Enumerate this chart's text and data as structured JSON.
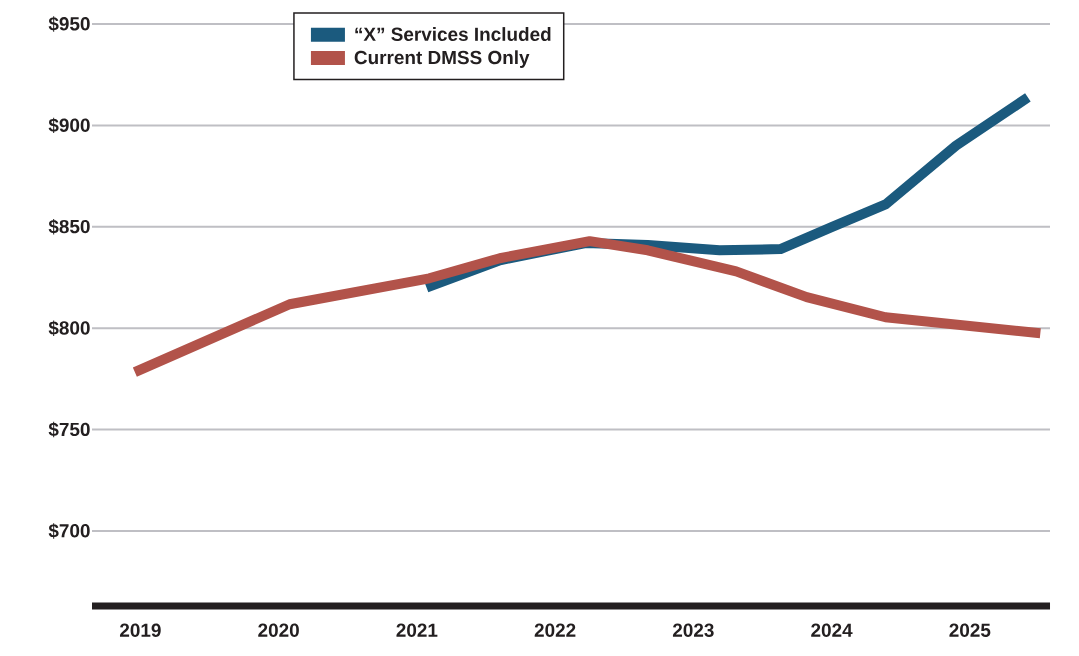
{
  "chart_data": {
    "type": "line",
    "legend": "top",
    "grid": "y",
    "line_style": "solid",
    "xlim": [
      2018.65,
      2025.58
    ],
    "xticks": [
      2019,
      2020,
      2021,
      2022,
      2023,
      2024,
      2025
    ],
    "ylim": [
      663,
      950
    ],
    "yticks": [
      {
        "value": 700,
        "label": "$700"
      },
      {
        "value": 750,
        "label": "$750"
      },
      {
        "value": 800,
        "label": "$800"
      },
      {
        "value": 850,
        "label": "$850"
      },
      {
        "value": 900,
        "label": "$900"
      },
      {
        "value": 950,
        "label": "$950"
      }
    ],
    "series": [
      {
        "name": "“X” Services Included",
        "color": "#1b5a7e",
        "x": [
          2021.07,
          2021.6,
          2022.22,
          2022.67,
          2023.19,
          2023.63,
          2024.0,
          2024.39,
          2024.9,
          2025.42
        ],
        "values": [
          820,
          833.5,
          842,
          841,
          838.4,
          839,
          849.8,
          861,
          890,
          913.8
        ]
      },
      {
        "name": "Current DMSS Only",
        "color": "#b2534a",
        "x": [
          2018.96,
          2020.08,
          2021.09,
          2021.6,
          2022.25,
          2022.67,
          2023.31,
          2023.82,
          2024.39,
          2025.51
        ],
        "values": [
          778.3,
          811.8,
          824.6,
          834.5,
          842.9,
          838.4,
          828,
          815.3,
          805.4,
          797.5
        ]
      }
    ]
  }
}
